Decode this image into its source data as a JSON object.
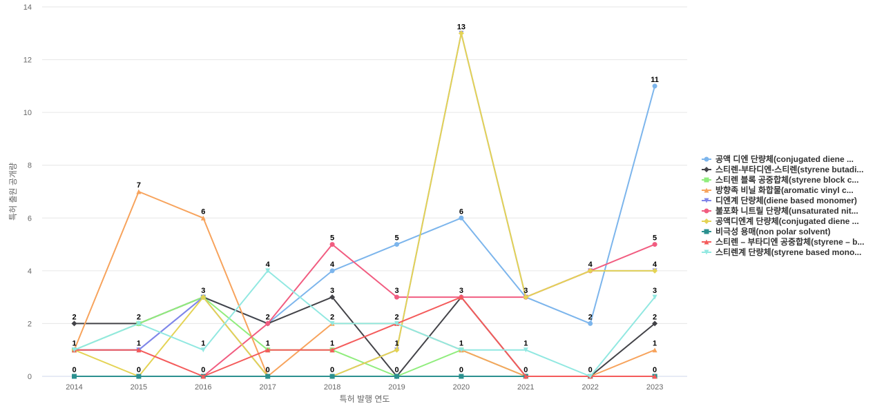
{
  "chart_data": {
    "type": "line",
    "xlabel": "특허 발행 연도",
    "ylabel": "특허 출원 공개량",
    "ylim": [
      0,
      14
    ],
    "yticks": [
      0,
      2,
      4,
      6,
      8,
      10,
      12,
      14
    ],
    "categories": [
      "2014",
      "2015",
      "2016",
      "2017",
      "2018",
      "2019",
      "2020",
      "2021",
      "2022",
      "2023"
    ],
    "grid": "horizontal",
    "legend_position": "right",
    "series": [
      {
        "name": "공액 디엔 단량체(conjugated diene ...",
        "color": "#7cb5ec",
        "marker": "circle",
        "values": [
          1,
          1,
          3,
          2,
          4,
          5,
          6,
          3,
          2,
          11
        ]
      },
      {
        "name": "스티렌-부타디엔-스티렌(styrene butadi...",
        "color": "#434348",
        "marker": "diamond",
        "values": [
          2,
          2,
          3,
          2,
          3,
          0,
          3,
          0,
          0,
          2
        ]
      },
      {
        "name": "스티렌 블록 공중합체(styrene block c...",
        "color": "#90ed7d",
        "marker": "square",
        "values": [
          1,
          2,
          3,
          1,
          1,
          0,
          1,
          0,
          0,
          0
        ]
      },
      {
        "name": "방향족 비닐 화합물(aromatic vinyl c...",
        "color": "#f7a35c",
        "marker": "triangle",
        "values": [
          1,
          7,
          6,
          0,
          2,
          2,
          1,
          0,
          0,
          1
        ]
      },
      {
        "name": "디엔계 단량체(diene based monomer)",
        "color": "#8085e9",
        "marker": "triangle-down",
        "values": [
          1,
          1,
          3,
          0,
          0,
          1,
          13,
          3,
          4,
          4
        ]
      },
      {
        "name": "불포화 니트릴 단량체(unsaturated nit...",
        "color": "#f15c80",
        "marker": "circle",
        "values": [
          0,
          0,
          0,
          2,
          5,
          3,
          3,
          3,
          4,
          5
        ]
      },
      {
        "name": "공액디엔계 단량체(conjugated diene ...",
        "color": "#e4d354",
        "marker": "diamond",
        "values": [
          1,
          0,
          3,
          0,
          0,
          1,
          13,
          3,
          4,
          4
        ]
      },
      {
        "name": "비극성 용매(non polar solvent)",
        "color": "#2b908f",
        "marker": "square",
        "values": [
          0,
          0,
          0,
          0,
          0,
          0,
          0,
          0,
          0,
          0
        ]
      },
      {
        "name": "스티렌 – 부타디엔 공중합체(styrene – b...",
        "color": "#f45b5b",
        "marker": "triangle",
        "values": [
          1,
          1,
          0,
          1,
          1,
          2,
          3,
          0,
          0,
          0
        ]
      },
      {
        "name": "스티렌계 단량체(styrene based mono...",
        "color": "#91e8e1",
        "marker": "triangle-down",
        "values": [
          1,
          2,
          1,
          4,
          2,
          2,
          1,
          1,
          0,
          3
        ]
      }
    ],
    "data_labels": [
      {
        "category": "2014",
        "value": 2
      },
      {
        "category": "2014",
        "value": 1
      },
      {
        "category": "2014",
        "value": 0
      },
      {
        "category": "2015",
        "value": 7
      },
      {
        "category": "2015",
        "value": 2
      },
      {
        "category": "2015",
        "value": 1
      },
      {
        "category": "2015",
        "value": 0
      },
      {
        "category": "2016",
        "value": 6
      },
      {
        "category": "2016",
        "value": 3
      },
      {
        "category": "2016",
        "value": 1
      },
      {
        "category": "2016",
        "value": 0
      },
      {
        "category": "2017",
        "value": 4
      },
      {
        "category": "2017",
        "value": 2
      },
      {
        "category": "2017",
        "value": 1
      },
      {
        "category": "2017",
        "value": 0
      },
      {
        "category": "2018",
        "value": 5
      },
      {
        "category": "2018",
        "value": 4
      },
      {
        "category": "2018",
        "value": 3
      },
      {
        "category": "2018",
        "value": 2
      },
      {
        "category": "2018",
        "value": 1
      },
      {
        "category": "2018",
        "value": 0
      },
      {
        "category": "2019",
        "value": 5
      },
      {
        "category": "2019",
        "value": 3
      },
      {
        "category": "2019",
        "value": 2
      },
      {
        "category": "2019",
        "value": 1
      },
      {
        "category": "2019",
        "value": 0
      },
      {
        "category": "2020",
        "value": 13
      },
      {
        "category": "2020",
        "value": 6
      },
      {
        "category": "2020",
        "value": 3
      },
      {
        "category": "2020",
        "value": 1
      },
      {
        "category": "2020",
        "value": 0
      },
      {
        "category": "2021",
        "value": 3
      },
      {
        "category": "2021",
        "value": 1
      },
      {
        "category": "2021",
        "value": 0
      },
      {
        "category": "2022",
        "value": 4
      },
      {
        "category": "2022",
        "value": 2
      },
      {
        "category": "2022",
        "value": 0
      },
      {
        "category": "2023",
        "value": 11
      },
      {
        "category": "2023",
        "value": 5
      },
      {
        "category": "2023",
        "value": 4
      },
      {
        "category": "2023",
        "value": 3
      },
      {
        "category": "2023",
        "value": 2
      },
      {
        "category": "2023",
        "value": 1
      },
      {
        "category": "2023",
        "value": 0
      }
    ]
  }
}
